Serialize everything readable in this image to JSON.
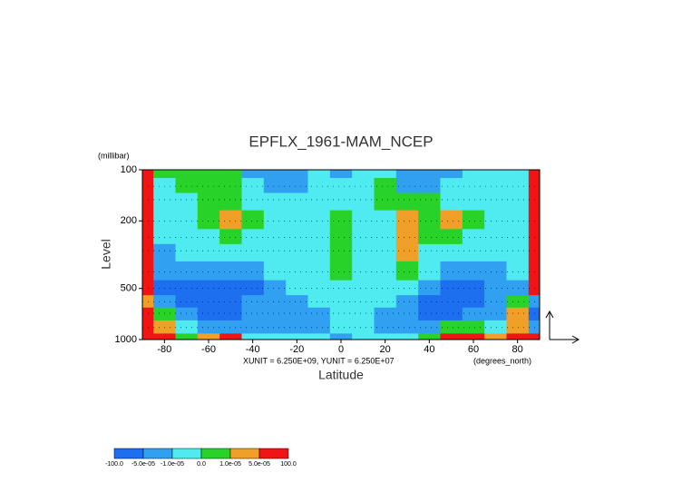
{
  "chart_data": {
    "type": "contour",
    "title": "EPFLX_1961-MAM_NCEP",
    "y_unit": "(millibar)",
    "ylabel": "Level",
    "xlabel": "Latitude",
    "annotation": "XUNIT = 6.250E+09, YUNIT = 6.250E+07",
    "x_unit": "(degrees_north)",
    "xlim": [
      -90,
      90
    ],
    "ylim": [
      1000,
      100
    ],
    "log_y": true,
    "xticks": [
      -80,
      -60,
      -40,
      -20,
      0,
      20,
      40,
      60,
      80
    ],
    "yticks": [
      100,
      200,
      500,
      1000
    ],
    "x": [
      -90,
      -80,
      -70,
      -60,
      -50,
      -40,
      -30,
      -20,
      -10,
      0,
      10,
      20,
      30,
      40,
      50,
      60,
      70,
      80,
      90
    ],
    "y": [
      100,
      125,
      150,
      200,
      250,
      300,
      400,
      500,
      600,
      700,
      850,
      1000
    ],
    "levels": [
      {
        "value": -100,
        "label": "-100.0"
      },
      {
        "value": -5e-05,
        "label": "-5.0e-05"
      },
      {
        "value": -1e-05,
        "label": "-1.0e-05"
      },
      {
        "value": 0,
        "label": "0.0"
      },
      {
        "value": 1e-05,
        "label": "1.0e-05"
      },
      {
        "value": 5e-05,
        "label": "5.0e-05"
      },
      {
        "value": 100,
        "label": "100.0"
      }
    ],
    "colors": [
      "#1e6ef0",
      "#32a0f0",
      "#50ebf0",
      "#28d228",
      "#f0a028",
      "#f01414"
    ],
    "z": [
      [
        7e-05,
        5e-06,
        5e-06,
        5e-06,
        5e-06,
        -3e-05,
        -3e-05,
        -3e-05,
        -5e-06,
        -3e-05,
        -5e-06,
        -5e-06,
        -3e-05,
        -3e-05,
        -3e-05,
        -5e-06,
        -5e-06,
        -5e-06,
        7e-05
      ],
      [
        7e-05,
        -5e-06,
        5e-06,
        5e-06,
        5e-06,
        -5e-06,
        -3e-05,
        -3e-05,
        -5e-06,
        -5e-06,
        -5e-06,
        5e-06,
        -3e-05,
        -3e-05,
        -5e-06,
        -5e-06,
        -5e-06,
        -5e-06,
        7e-05
      ],
      [
        7e-05,
        -5e-06,
        -5e-06,
        5e-06,
        5e-06,
        -5e-06,
        -5e-06,
        -5e-06,
        -5e-06,
        -5e-06,
        -5e-06,
        5e-06,
        5e-06,
        5e-06,
        -5e-06,
        -5e-06,
        -5e-06,
        -5e-06,
        7e-05
      ],
      [
        7e-05,
        -5e-06,
        -5e-06,
        5e-06,
        3e-05,
        5e-06,
        -5e-06,
        -5e-06,
        -5e-06,
        5e-06,
        -5e-06,
        -5e-06,
        3e-05,
        5e-06,
        3e-05,
        5e-06,
        -5e-06,
        -5e-06,
        7e-05
      ],
      [
        7e-05,
        -5e-06,
        -5e-06,
        -5e-06,
        5e-06,
        -5e-06,
        -5e-06,
        -5e-06,
        -5e-06,
        5e-06,
        -5e-06,
        -5e-06,
        3e-05,
        5e-06,
        5e-06,
        -5e-06,
        -5e-06,
        -5e-06,
        7e-05
      ],
      [
        7e-05,
        -3e-05,
        -5e-06,
        -5e-06,
        -5e-06,
        -5e-06,
        -5e-06,
        -5e-06,
        -5e-06,
        5e-06,
        -5e-06,
        -5e-06,
        3e-05,
        -5e-06,
        -5e-06,
        -5e-06,
        -5e-06,
        -5e-06,
        7e-05
      ],
      [
        7e-05,
        -3e-05,
        -3e-05,
        -3e-05,
        -3e-05,
        -3e-05,
        -5e-06,
        -5e-06,
        -5e-06,
        5e-06,
        -5e-06,
        -5e-06,
        5e-06,
        -5e-06,
        -3e-05,
        -3e-05,
        -3e-05,
        -5e-06,
        7e-05
      ],
      [
        7e-05,
        -7e-05,
        -7e-05,
        -7e-05,
        -7e-05,
        -7e-05,
        -3e-05,
        -5e-06,
        -5e-06,
        -5e-06,
        -5e-06,
        -5e-06,
        -5e-06,
        -3e-05,
        -7e-05,
        -7e-05,
        -3e-05,
        -3e-05,
        7e-05
      ],
      [
        3e-05,
        -3e-05,
        -7e-05,
        -7e-05,
        -7e-05,
        -3e-05,
        -3e-05,
        -3e-05,
        -5e-06,
        -5e-06,
        -5e-06,
        -5e-06,
        -3e-05,
        -7e-05,
        -7e-05,
        -7e-05,
        -3e-05,
        5e-06,
        -3e-05
      ],
      [
        7e-05,
        5e-06,
        -3e-05,
        -7e-05,
        -7e-05,
        -3e-05,
        -3e-05,
        -3e-05,
        -3e-05,
        -5e-06,
        -5e-06,
        -3e-05,
        -3e-05,
        -7e-05,
        -7e-05,
        -3e-05,
        -3e-05,
        3e-05,
        -7e-05
      ],
      [
        7e-05,
        3e-05,
        -5e-06,
        -3e-05,
        -3e-05,
        -3e-05,
        -3e-05,
        -3e-05,
        -3e-05,
        -5e-06,
        -5e-06,
        -3e-05,
        -3e-05,
        -3e-05,
        5e-06,
        5e-06,
        -5e-06,
        3e-05,
        -3e-05
      ],
      [
        7e-05,
        7e-05,
        5e-06,
        3e-05,
        7e-05,
        -5e-06,
        -5e-06,
        -5e-06,
        -5e-06,
        -3e-05,
        -5e-06,
        -5e-06,
        -5e-06,
        5e-06,
        7e-05,
        7e-05,
        3e-05,
        7e-05,
        7e-05
      ]
    ]
  }
}
